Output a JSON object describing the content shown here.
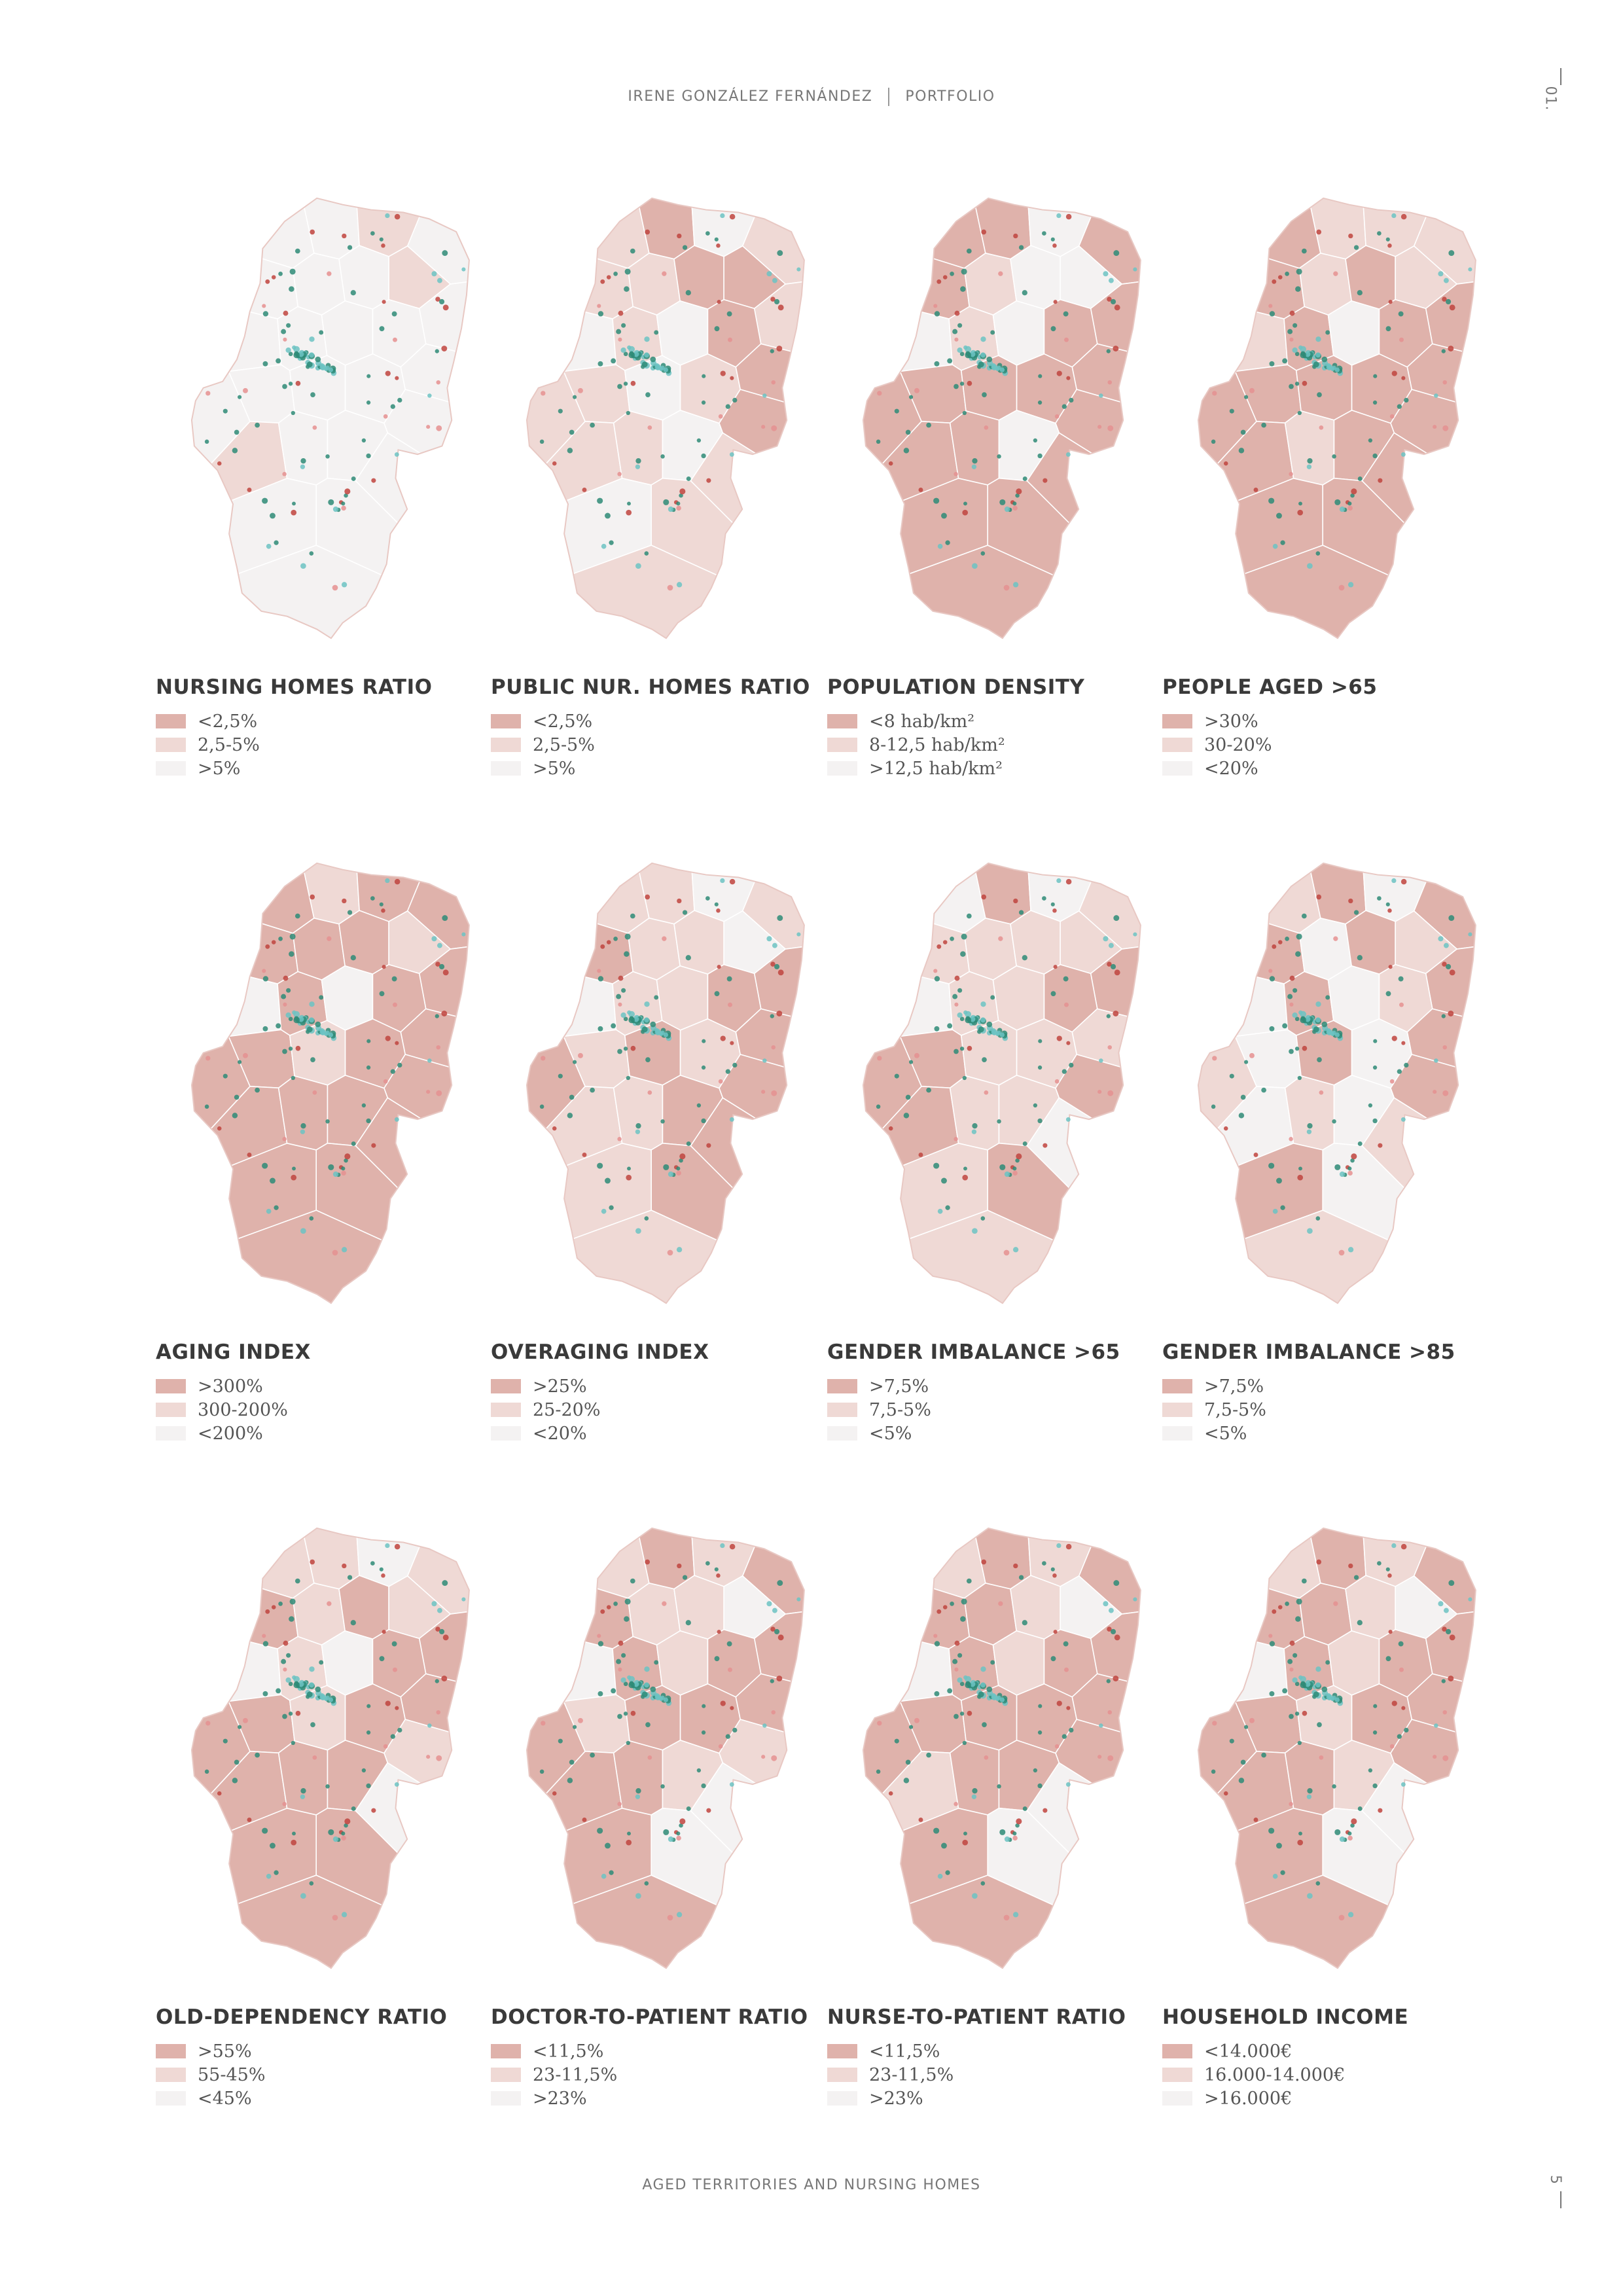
{
  "header": {
    "author": "IRENE GONZÁLEZ FERNÁNDEZ",
    "section": "PORTFOLIO"
  },
  "section_number": "01.",
  "footer": {
    "title": "AGED TERRITORIES AND NURSING HOMES"
  },
  "page_number": "5",
  "colors": {
    "high": "#dfb2ab",
    "mid": "#efd9d5",
    "low": "#f4f2f2",
    "border": "#e8c8c3",
    "dot_green": "#2e8b77",
    "dot_teal": "#6cc3c3",
    "dot_red": "#c0443e",
    "dot_pink": "#e59090"
  },
  "panels": [
    {
      "title": "NURSING HOMES RATIO",
      "legend": [
        "<2,5%",
        "2,5-5%",
        ">5%"
      ],
      "pattern": [
        2,
        2,
        1,
        2,
        2,
        2,
        2,
        1,
        2,
        2,
        2,
        2,
        2,
        2,
        2,
        2,
        2,
        2,
        2,
        1,
        2,
        2,
        2,
        2,
        2,
        2
      ]
    },
    {
      "title": "PUBLIC NUR. HOMES RATIO",
      "legend": [
        "<2,5%",
        "2,5-5%",
        ">5%"
      ],
      "pattern": [
        1,
        0,
        2,
        1,
        1,
        1,
        0,
        0,
        1,
        2,
        1,
        2,
        0,
        0,
        1,
        1,
        2,
        1,
        0,
        1,
        1,
        2,
        1,
        2,
        1,
        1
      ]
    },
    {
      "title": "POPULATION DENSITY",
      "legend": [
        "<8 hab/km²",
        "8-12,5 hab/km²",
        ">12,5 hab/km²"
      ],
      "pattern": [
        0,
        0,
        2,
        0,
        0,
        1,
        2,
        2,
        0,
        2,
        1,
        2,
        0,
        0,
        0,
        0,
        0,
        0,
        0,
        0,
        0,
        2,
        0,
        0,
        0,
        0
      ]
    },
    {
      "title": "PEOPLE AGED >65",
      "legend": [
        ">30%",
        "30-20%",
        "<20%"
      ],
      "pattern": [
        0,
        1,
        1,
        1,
        0,
        1,
        0,
        1,
        0,
        1,
        0,
        2,
        0,
        0,
        0,
        0,
        0,
        0,
        0,
        0,
        1,
        0,
        0,
        0,
        0,
        0
      ]
    },
    {
      "title": "AGING INDEX",
      "legend": [
        ">300%",
        "300-200%",
        "<200%"
      ],
      "pattern": [
        0,
        1,
        0,
        0,
        0,
        0,
        0,
        1,
        0,
        2,
        0,
        2,
        0,
        0,
        0,
        0,
        1,
        0,
        0,
        0,
        0,
        0,
        0,
        0,
        0,
        0
      ]
    },
    {
      "title": "OVERAGING INDEX",
      "legend": [
        ">25%",
        "25-20%",
        "<20%"
      ],
      "pattern": [
        1,
        1,
        2,
        1,
        0,
        1,
        1,
        2,
        0,
        2,
        1,
        1,
        0,
        0,
        0,
        1,
        0,
        1,
        0,
        1,
        1,
        0,
        0,
        1,
        0,
        1
      ]
    },
    {
      "title": "GENDER IMBALANCE >65",
      "legend": [
        ">7,5%",
        "7,5-5%",
        "<5%"
      ],
      "pattern": [
        2,
        0,
        2,
        1,
        1,
        1,
        1,
        1,
        0,
        2,
        1,
        1,
        0,
        1,
        0,
        0,
        1,
        1,
        0,
        0,
        1,
        1,
        2,
        1,
        0,
        1
      ]
    },
    {
      "title": "GENDER IMBALANCE >85",
      "legend": [
        ">7,5%",
        "7,5-5%",
        "<5%"
      ],
      "pattern": [
        1,
        0,
        2,
        0,
        0,
        2,
        0,
        1,
        0,
        2,
        0,
        2,
        1,
        0,
        1,
        2,
        0,
        2,
        0,
        2,
        1,
        2,
        1,
        0,
        2,
        1
      ]
    },
    {
      "title": "OLD-DEPENDENCY RATIO",
      "legend": [
        ">55%",
        "55-45%",
        "<45%"
      ],
      "pattern": [
        1,
        1,
        2,
        1,
        0,
        1,
        0,
        1,
        0,
        2,
        1,
        2,
        0,
        0,
        0,
        0,
        1,
        0,
        1,
        0,
        0,
        0,
        2,
        0,
        0,
        0
      ]
    },
    {
      "title": "DOCTOR-TO-PATIENT RATIO",
      "legend": [
        "<11,5%",
        "23-11,5%",
        ">23%"
      ],
      "pattern": [
        1,
        0,
        1,
        0,
        0,
        1,
        1,
        2,
        0,
        2,
        0,
        1,
        0,
        0,
        0,
        1,
        0,
        0,
        1,
        0,
        0,
        1,
        2,
        0,
        2,
        0
      ]
    },
    {
      "title": "NURSE-TO-PATIENT RATIO",
      "legend": [
        "<11,5%",
        "23-11,5%",
        ">23%"
      ],
      "pattern": [
        1,
        0,
        1,
        0,
        0,
        0,
        1,
        2,
        0,
        2,
        0,
        1,
        0,
        0,
        0,
        0,
        0,
        0,
        0,
        1,
        0,
        0,
        2,
        0,
        2,
        0
      ]
    },
    {
      "title": "HOUSEHOLD INCOME",
      "legend": [
        "<14.000€",
        "16.000-14.000€",
        ">16.000€"
      ],
      "pattern": [
        1,
        0,
        1,
        0,
        0,
        0,
        1,
        2,
        0,
        2,
        0,
        1,
        0,
        0,
        0,
        0,
        1,
        0,
        0,
        0,
        0,
        1,
        2,
        0,
        2,
        0
      ]
    }
  ]
}
